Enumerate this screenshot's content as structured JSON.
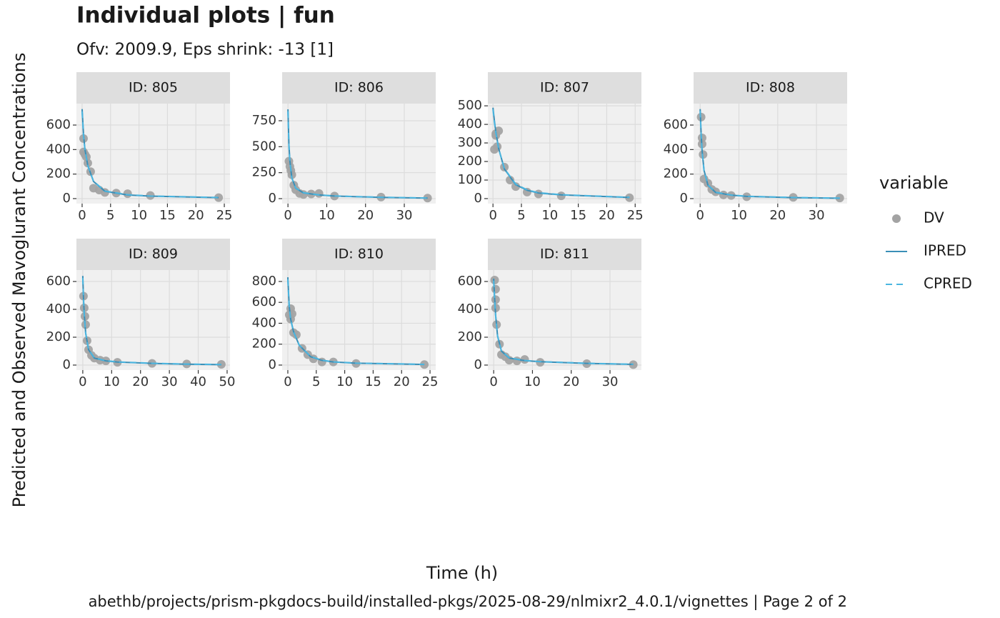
{
  "chart_data": {
    "type": "faceted_scatter_line",
    "title": "Individual plots | fun",
    "subtitle": "Ofv: 2009.9, Eps shrink: -13 [1]",
    "x_label": "Time (h)",
    "y_label": "Predicted and Observed Mavoglurant Concentrations",
    "caption": "abethb/projects/prism-pkgdocs-build/installed-pkgs/2025-08-29/nlmixr2_4.0.1/vignettes | Page 2 of 2",
    "grid": true,
    "legend": {
      "title": "variable",
      "position": "right",
      "entries": [
        {
          "name": "DV",
          "color": "#a3a3a3",
          "mark": "point"
        },
        {
          "name": "IPRED",
          "color": "#3a8fb7",
          "mark": "solid"
        },
        {
          "name": "CPRED",
          "color": "#4bb6e0",
          "mark": "dashed"
        }
      ]
    },
    "panels": [
      {
        "title": "ID: 805",
        "xlim": [
          -1,
          26
        ],
        "ylim": [
          -41,
          775
        ],
        "xticks": [
          0,
          5,
          10,
          15,
          20,
          25
        ],
        "yticks": [
          0,
          200,
          400,
          600
        ],
        "series": [
          {
            "x": [
              0.25,
              0.25,
              0.5,
              0.75,
              1,
              1.5,
              2,
              3,
              4,
              6,
              8,
              12,
              24
            ],
            "values": [
              490,
              380,
              360,
              340,
              290,
              220,
              85,
              70,
              50,
              45,
              40,
              25,
              8
            ]
          },
          {
            "x": [
              0,
              0.25,
              0.5,
              1,
              2,
              4,
              8,
              12,
              24
            ],
            "values": [
              730,
              520,
              400,
              270,
              140,
              60,
              30,
              20,
              8
            ]
          },
          {
            "x": [
              0,
              0.25,
              0.5,
              1,
              2,
              4,
              8,
              12,
              24
            ],
            "values": [
              710,
              510,
              395,
              268,
              142,
              62,
              32,
              21,
              9
            ]
          }
        ]
      },
      {
        "title": "ID: 806",
        "xlim": [
          -1.5,
          38.1
        ],
        "ylim": [
          -48,
          915
        ],
        "xticks": [
          0,
          10,
          20,
          30
        ],
        "yticks": [
          0,
          250,
          500,
          750
        ],
        "series": [
          {
            "x": [
              0.25,
              0.5,
              0.75,
              1,
              1.5,
              2,
              3,
              4,
              6,
              8,
              12,
              24,
              36
            ],
            "values": [
              360,
              310,
              270,
              230,
              130,
              85,
              50,
              40,
              45,
              50,
              25,
              15,
              5
            ]
          },
          {
            "x": [
              0,
              0.25,
              0.5,
              1,
              2,
              4,
              8,
              12,
              24,
              36
            ],
            "values": [
              860,
              520,
              360,
              200,
              100,
              55,
              35,
              25,
              12,
              5
            ]
          },
          {
            "x": [
              0,
              0.25,
              0.5,
              1,
              2,
              4,
              8,
              12,
              24,
              36
            ],
            "values": [
              840,
              510,
              355,
              198,
              102,
              57,
              36,
              26,
              13,
              6
            ]
          }
        ]
      },
      {
        "title": "ID: 807",
        "xlim": [
          -0.9,
          26.1
        ],
        "ylim": [
          -27,
          512
        ],
        "xticks": [
          0,
          5,
          10,
          15,
          20,
          25
        ],
        "yticks": [
          0,
          100,
          200,
          300,
          400,
          500
        ],
        "series": [
          {
            "x": [
              0.25,
              0.5,
              0.5,
              0.75,
              1,
              2,
              3,
              4,
              6,
              8,
              12,
              24
            ],
            "values": [
              265,
              340,
              350,
              280,
              365,
              170,
              100,
              65,
              35,
              25,
              15,
              5
            ]
          },
          {
            "x": [
              0,
              0.25,
              0.5,
              1,
              2,
              4,
              6,
              8,
              12,
              24
            ],
            "values": [
              490,
              420,
              360,
              270,
              160,
              75,
              45,
              30,
              20,
              6
            ]
          },
          {
            "x": [
              0,
              0.25,
              0.5,
              1,
              2,
              4,
              6,
              8,
              12,
              24
            ],
            "values": [
              480,
              412,
              355,
              268,
              162,
              78,
              47,
              32,
              21,
              7
            ]
          }
        ]
      },
      {
        "title": "ID: 808",
        "xlim": [
          -1.7,
          37.9
        ],
        "ylim": [
          -41,
          775
        ],
        "xticks": [
          0,
          10,
          20,
          30
        ],
        "yticks": [
          0,
          200,
          400,
          600
        ],
        "series": [
          {
            "x": [
              0.25,
              0.5,
              0.5,
              0.75,
              1,
              2,
              3,
              4,
              6,
              8,
              12,
              24,
              36
            ],
            "values": [
              665,
              495,
              445,
              360,
              160,
              125,
              75,
              55,
              30,
              25,
              15,
              10,
              5
            ]
          },
          {
            "x": [
              0,
              0.25,
              0.5,
              1,
              2,
              4,
              8,
              12,
              24,
              36
            ],
            "values": [
              730,
              530,
              390,
              230,
              110,
              50,
              28,
              18,
              8,
              3
            ]
          },
          {
            "x": [
              0,
              0.25,
              0.5,
              1,
              2,
              4,
              8,
              12,
              24,
              36
            ],
            "values": [
              715,
              520,
              385,
              228,
              112,
              52,
              29,
              19,
              9,
              4
            ]
          }
        ]
      },
      {
        "title": "ID: 809",
        "xlim": [
          -2.2,
          51
        ],
        "ylim": [
          -36,
          682
        ],
        "xticks": [
          0,
          10,
          20,
          30,
          40,
          50
        ],
        "yticks": [
          0,
          200,
          400,
          600
        ],
        "series": [
          {
            "x": [
              0.25,
              0.5,
              0.75,
              1,
              1.5,
              2,
              3,
              4,
              6,
              8,
              12,
              24,
              36,
              48
            ],
            "values": [
              495,
              410,
              350,
              290,
              175,
              110,
              70,
              50,
              35,
              30,
              20,
              12,
              8,
              5
            ]
          },
          {
            "x": [
              0,
              0.25,
              0.5,
              1,
              2,
              4,
              8,
              12,
              24,
              36,
              48
            ],
            "values": [
              640,
              480,
              370,
              230,
              110,
              50,
              30,
              22,
              12,
              6,
              3
            ]
          },
          {
            "x": [
              0,
              0.25,
              0.5,
              1,
              2,
              4,
              8,
              12,
              24,
              36,
              48
            ],
            "values": [
              625,
              472,
              365,
              228,
              112,
              52,
              31,
              23,
              13,
              7,
              4
            ]
          }
        ]
      },
      {
        "title": "ID: 810",
        "xlim": [
          -1,
          26
        ],
        "ylim": [
          -48,
          909
        ],
        "xticks": [
          0,
          5,
          10,
          15,
          20,
          25
        ],
        "yticks": [
          0,
          200,
          400,
          600,
          800
        ],
        "series": [
          {
            "x": [
              0.25,
              0.5,
              0.5,
              0.75,
              1,
              1.5,
              2.5,
              3.5,
              4.5,
              6,
              8,
              12,
              24
            ],
            "values": [
              480,
              540,
              440,
              490,
              310,
              290,
              160,
              100,
              60,
              30,
              30,
              15,
              5
            ]
          },
          {
            "x": [
              0,
              0.25,
              0.5,
              1,
              2,
              4,
              6,
              8,
              12,
              24
            ],
            "values": [
              840,
              560,
              440,
              320,
              190,
              80,
              45,
              30,
              18,
              6
            ]
          },
          {
            "x": [
              0,
              0.25,
              0.5,
              1,
              2,
              4,
              6,
              8,
              12,
              24
            ],
            "values": [
              820,
              550,
              435,
              318,
              192,
              82,
              47,
              31,
              19,
              7
            ]
          }
        ]
      },
      {
        "title": "ID: 811",
        "xlim": [
          -1.5,
          38.1
        ],
        "ylim": [
          -36,
          682
        ],
        "xticks": [
          0,
          10,
          20,
          30
        ],
        "yticks": [
          0,
          200,
          400,
          600
        ],
        "series": [
          {
            "x": [
              0.25,
              0.5,
              0.5,
              0.5,
              0.75,
              1.5,
              2,
              3,
              4,
              6,
              8,
              12,
              24,
              36
            ],
            "values": [
              610,
              545,
              470,
              410,
              290,
              150,
              75,
              60,
              35,
              30,
              40,
              20,
              10,
              3
            ]
          },
          {
            "x": [
              0,
              0.25,
              0.5,
              1,
              2,
              4,
              8,
              12,
              24,
              36
            ],
            "values": [
              620,
              480,
              360,
              210,
              100,
              50,
              32,
              24,
              12,
              5
            ]
          },
          {
            "x": [
              0,
              0.25,
              0.5,
              1,
              2,
              4,
              8,
              12,
              24,
              36
            ],
            "values": [
              605,
              470,
              355,
              208,
              102,
              52,
              33,
              25,
              13,
              6
            ]
          }
        ]
      }
    ]
  }
}
